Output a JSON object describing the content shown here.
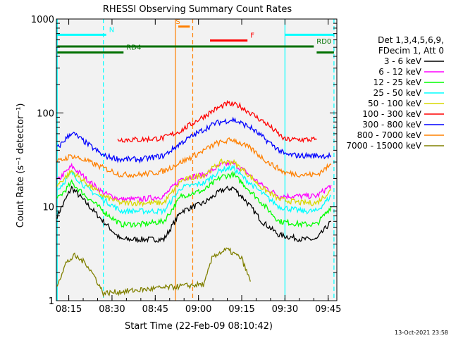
{
  "chart_data": {
    "type": "line",
    "title": "RHESSI Observing Summary Count Rates",
    "xlabel": "Start Time (22-Feb-09 08:10:42)",
    "ylabel": "Count Rate (s⁻¹ detector⁻¹)",
    "y_scale": "log",
    "ylim": [
      1,
      1000
    ],
    "xlim": [
      "08:10:42",
      "09:48:00"
    ],
    "x_ticks": [
      "08:15",
      "08:30",
      "08:45",
      "09:00",
      "09:15",
      "09:30",
      "09:45"
    ],
    "y_ticks": [
      "1",
      "10",
      "100",
      "1000"
    ],
    "grid": false,
    "legend_position": "right",
    "legend_header": [
      "Det 1,3,4,5,6,9,",
      "FDecim 1, Att 0"
    ],
    "timestamp": "13-Oct-2021 23:58",
    "series": [
      {
        "name": "3 - 6 keV",
        "color": "#000000",
        "x": [
          "08:11",
          "08:16",
          "08:21",
          "08:27",
          "08:33",
          "08:40",
          "08:48",
          "08:54",
          "09:02",
          "09:08",
          "09:12",
          "09:16",
          "09:22",
          "09:28",
          "09:36",
          "09:41",
          "09:46"
        ],
        "y": [
          8,
          16,
          11,
          7,
          4.5,
          4.5,
          4.5,
          9,
          11,
          15,
          16,
          12,
          7,
          5,
          4.5,
          4.5,
          7
        ]
      },
      {
        "name": "6 - 12 keV",
        "color": "#ff00ff",
        "x": [
          "08:11",
          "08:16",
          "08:21",
          "08:27",
          "08:33",
          "08:40",
          "08:48",
          "08:54",
          "09:02",
          "09:08",
          "09:12",
          "09:16",
          "09:22",
          "09:28",
          "09:36",
          "09:41",
          "09:46"
        ],
        "y": [
          19,
          27,
          20,
          14,
          12,
          12,
          13,
          20,
          22,
          28,
          29,
          24,
          17,
          13,
          13,
          13,
          17
        ]
      },
      {
        "name": "12 - 25 keV",
        "color": "#00ff00",
        "x": [
          "08:11",
          "08:16",
          "08:21",
          "08:27",
          "08:33",
          "08:40",
          "08:48",
          "08:54",
          "09:02",
          "09:08",
          "09:12",
          "09:16",
          "09:22",
          "09:28",
          "09:36",
          "09:41",
          "09:46"
        ],
        "y": [
          12,
          18,
          13,
          9,
          6.5,
          6.5,
          7,
          13,
          15,
          21,
          22,
          17,
          11,
          7,
          6.5,
          6.5,
          10
        ]
      },
      {
        "name": "25 - 50 keV",
        "color": "#00ffff",
        "x": [
          "08:11",
          "08:16",
          "08:21",
          "08:27",
          "08:33",
          "08:40",
          "08:48",
          "08:54",
          "09:02",
          "09:08",
          "09:12",
          "09:16",
          "09:22",
          "09:28",
          "09:36",
          "09:41",
          "09:46"
        ],
        "y": [
          15,
          23,
          16,
          12,
          9,
          9,
          9,
          16,
          18,
          25,
          26,
          20,
          14,
          10,
          9,
          9,
          13
        ]
      },
      {
        "name": "50 - 100 keV",
        "color": "#d8d800",
        "x": [
          "08:11",
          "08:16",
          "08:21",
          "08:27",
          "08:33",
          "08:40",
          "08:48",
          "08:54",
          "09:02",
          "09:08",
          "09:12",
          "09:16",
          "09:22",
          "09:28",
          "09:36",
          "09:41",
          "09:46"
        ],
        "y": [
          17,
          24,
          18,
          13,
          11,
          11,
          11,
          19,
          22,
          30,
          30,
          24,
          16,
          12,
          11,
          11,
          15
        ]
      },
      {
        "name": "100 - 300 keV",
        "color": "#ff0000",
        "x": [
          "08:32",
          "08:40",
          "08:48",
          "08:54",
          "09:00",
          "09:06",
          "09:10",
          "09:14",
          "09:18",
          "09:24",
          "09:30",
          "09:36",
          "09:41"
        ],
        "y": [
          52,
          52,
          54,
          65,
          85,
          110,
          125,
          120,
          100,
          75,
          52,
          52,
          52
        ]
      },
      {
        "name": "300 - 800 keV",
        "color": "#0000ff",
        "x": [
          "08:11",
          "08:16",
          "08:21",
          "08:27",
          "08:33",
          "08:40",
          "08:48",
          "08:54",
          "09:00",
          "09:06",
          "09:12",
          "09:18",
          "09:24",
          "09:30",
          "09:36",
          "09:41",
          "09:46"
        ],
        "y": [
          42,
          62,
          48,
          35,
          32,
          32,
          35,
          48,
          62,
          78,
          85,
          70,
          50,
          36,
          35,
          35,
          35
        ]
      },
      {
        "name": "800 - 7000 keV",
        "color": "#ff8000",
        "x": [
          "08:11",
          "08:16",
          "08:21",
          "08:27",
          "08:33",
          "08:40",
          "08:48",
          "08:54",
          "09:00",
          "09:06",
          "09:12",
          "09:18",
          "09:24",
          "09:30",
          "09:36",
          "09:41",
          "09:46"
        ],
        "y": [
          30,
          35,
          31,
          26,
          22,
          22,
          24,
          30,
          37,
          47,
          52,
          42,
          30,
          23,
          22,
          22,
          28
        ]
      },
      {
        "name": "7000 - 15000 keV",
        "color": "#808000",
        "x": [
          "08:11",
          "08:14",
          "08:17",
          "08:21",
          "08:24",
          "08:27",
          "09:02",
          "09:05",
          "09:10",
          "09:15",
          "09:18"
        ],
        "y": [
          1.5,
          2.5,
          3,
          2.5,
          1.8,
          1.2,
          1.5,
          3,
          3.5,
          2.8,
          1.6
        ]
      }
    ],
    "annotations": [
      {
        "text": "N",
        "color": "#00ffff",
        "x_start": "08:11",
        "x_end": "08:28",
        "x2_start": "09:30",
        "x2_end": "09:47",
        "y": 680
      },
      {
        "text": "RD0",
        "color": "#007000",
        "x_start": "08:11",
        "x_end": "09:40",
        "y": 510
      },
      {
        "text": "RD4",
        "color": "#007000",
        "x_start": "08:11",
        "x_end": "08:34",
        "x2_start": "09:41",
        "x2_end": "09:47",
        "y": 440
      },
      {
        "text": "S",
        "color": "#ff8000",
        "x_start": "08:53",
        "x_end": "08:57",
        "y": 830
      },
      {
        "text": "F",
        "color": "#ff0000",
        "x_start": "09:04",
        "x_end": "09:17",
        "y": 590
      }
    ],
    "vlines": [
      {
        "time": "08:11",
        "color": "#00ffff",
        "style": "solid"
      },
      {
        "time": "08:27",
        "color": "#00ffff",
        "style": "dashed"
      },
      {
        "time": "08:52",
        "color": "#ff8000",
        "style": "solid"
      },
      {
        "time": "08:58",
        "color": "#ff8000",
        "style": "dashed"
      },
      {
        "time": "09:30",
        "color": "#00ffff",
        "style": "solid"
      },
      {
        "time": "09:47",
        "color": "#00ffff",
        "style": "dashed"
      }
    ]
  }
}
